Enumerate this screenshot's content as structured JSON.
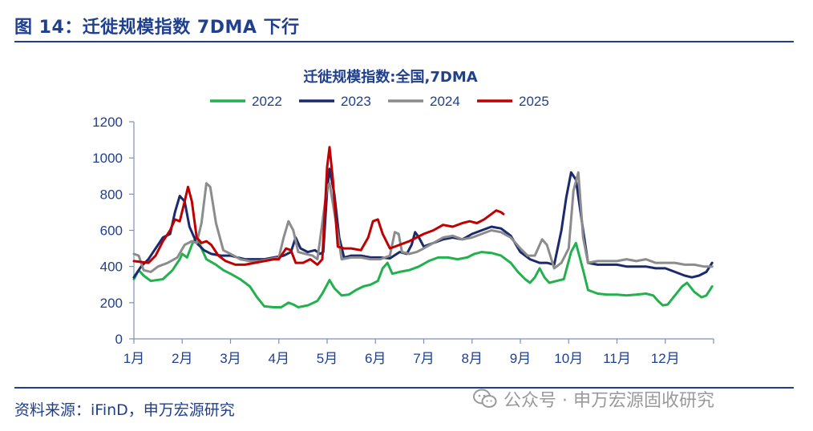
{
  "figure": {
    "title": "图 14：迁徙规模指数 7DMA 下行",
    "source": "资料来源：iFinD，申万宏源研究",
    "watermark": "公众号 · 申万宏源固收研究",
    "watermark_icon": "wechat-icon"
  },
  "colors": {
    "header": "#1f3f8f",
    "s2022": "#22b14c",
    "s2023": "#1a2a6c",
    "s2024": "#8c8c8c",
    "s2025": "#c00000"
  },
  "chart_data": {
    "type": "line",
    "title": "迁徙规模指数:全国,7DMA",
    "xlabel": "",
    "ylabel": "",
    "xlim": [
      1,
      13
    ],
    "ylim": [
      0,
      1200
    ],
    "yticks": [
      0,
      200,
      400,
      600,
      800,
      1000,
      1200
    ],
    "xticks": [
      {
        "label": "1月",
        "x": 1
      },
      {
        "label": "2月",
        "x": 2
      },
      {
        "label": "3月",
        "x": 3
      },
      {
        "label": "4月",
        "x": 4
      },
      {
        "label": "5月",
        "x": 5
      },
      {
        "label": "6月",
        "x": 6
      },
      {
        "label": "7月",
        "x": 7
      },
      {
        "label": "8月",
        "x": 8
      },
      {
        "label": "9月",
        "x": 9
      },
      {
        "label": "10月",
        "x": 10
      },
      {
        "label": "11月",
        "x": 11
      },
      {
        "label": "12月",
        "x": 12
      }
    ],
    "grid": false,
    "legend": "top-center",
    "series": [
      {
        "name": "2022",
        "color": "#22b14c",
        "points": [
          [
            1.0,
            330
          ],
          [
            1.1,
            380
          ],
          [
            1.2,
            350
          ],
          [
            1.35,
            320
          ],
          [
            1.6,
            330
          ],
          [
            1.8,
            380
          ],
          [
            1.95,
            440
          ],
          [
            2.0,
            470
          ],
          [
            2.1,
            450
          ],
          [
            2.2,
            520
          ],
          [
            2.3,
            570
          ],
          [
            2.4,
            500
          ],
          [
            2.5,
            440
          ],
          [
            2.7,
            410
          ],
          [
            2.85,
            380
          ],
          [
            3.0,
            360
          ],
          [
            3.2,
            330
          ],
          [
            3.4,
            290
          ],
          [
            3.55,
            230
          ],
          [
            3.7,
            180
          ],
          [
            3.9,
            175
          ],
          [
            4.05,
            175
          ],
          [
            4.2,
            200
          ],
          [
            4.3,
            190
          ],
          [
            4.4,
            175
          ],
          [
            4.6,
            185
          ],
          [
            4.8,
            210
          ],
          [
            4.9,
            250
          ],
          [
            5.0,
            300
          ],
          [
            5.05,
            325
          ],
          [
            5.15,
            280
          ],
          [
            5.3,
            240
          ],
          [
            5.45,
            245
          ],
          [
            5.6,
            270
          ],
          [
            5.75,
            290
          ],
          [
            5.9,
            300
          ],
          [
            6.05,
            320
          ],
          [
            6.15,
            390
          ],
          [
            6.25,
            420
          ],
          [
            6.35,
            360
          ],
          [
            6.5,
            370
          ],
          [
            6.7,
            380
          ],
          [
            6.9,
            400
          ],
          [
            7.1,
            430
          ],
          [
            7.3,
            450
          ],
          [
            7.5,
            450
          ],
          [
            7.7,
            440
          ],
          [
            7.9,
            450
          ],
          [
            8.05,
            470
          ],
          [
            8.2,
            480
          ],
          [
            8.4,
            475
          ],
          [
            8.6,
            460
          ],
          [
            8.8,
            420
          ],
          [
            8.95,
            370
          ],
          [
            9.1,
            330
          ],
          [
            9.2,
            310
          ],
          [
            9.3,
            340
          ],
          [
            9.4,
            390
          ],
          [
            9.5,
            340
          ],
          [
            9.6,
            310
          ],
          [
            9.75,
            320
          ],
          [
            9.9,
            330
          ],
          [
            10.05,
            480
          ],
          [
            10.15,
            530
          ],
          [
            10.3,
            380
          ],
          [
            10.4,
            270
          ],
          [
            10.6,
            250
          ],
          [
            10.8,
            245
          ],
          [
            11.0,
            245
          ],
          [
            11.2,
            240
          ],
          [
            11.4,
            245
          ],
          [
            11.6,
            250
          ],
          [
            11.75,
            240
          ],
          [
            11.85,
            210
          ],
          [
            11.95,
            185
          ],
          [
            12.05,
            190
          ],
          [
            12.2,
            240
          ],
          [
            12.35,
            290
          ],
          [
            12.45,
            310
          ],
          [
            12.6,
            260
          ],
          [
            12.75,
            230
          ],
          [
            12.85,
            240
          ],
          [
            12.97,
            290
          ]
        ]
      },
      {
        "name": "2023",
        "color": "#1a2a6c",
        "points": [
          [
            1.0,
            340
          ],
          [
            1.15,
            400
          ],
          [
            1.3,
            440
          ],
          [
            1.45,
            500
          ],
          [
            1.6,
            560
          ],
          [
            1.75,
            580
          ],
          [
            1.85,
            700
          ],
          [
            1.95,
            790
          ],
          [
            2.05,
            760
          ],
          [
            2.15,
            620
          ],
          [
            2.3,
            530
          ],
          [
            2.45,
            490
          ],
          [
            2.6,
            470
          ],
          [
            2.8,
            460
          ],
          [
            3.0,
            460
          ],
          [
            3.15,
            450
          ],
          [
            3.3,
            440
          ],
          [
            3.5,
            440
          ],
          [
            3.7,
            440
          ],
          [
            3.9,
            450
          ],
          [
            4.1,
            460
          ],
          [
            4.25,
            480
          ],
          [
            4.35,
            560
          ],
          [
            4.45,
            500
          ],
          [
            4.6,
            480
          ],
          [
            4.75,
            490
          ],
          [
            4.85,
            470
          ],
          [
            4.92,
            480
          ],
          [
            5.0,
            820
          ],
          [
            5.05,
            940
          ],
          [
            5.15,
            800
          ],
          [
            5.25,
            560
          ],
          [
            5.35,
            450
          ],
          [
            5.5,
            460
          ],
          [
            5.7,
            460
          ],
          [
            5.9,
            450
          ],
          [
            6.1,
            450
          ],
          [
            6.3,
            445
          ],
          [
            6.5,
            480
          ],
          [
            6.65,
            470
          ],
          [
            6.75,
            520
          ],
          [
            6.82,
            590
          ],
          [
            6.9,
            560
          ],
          [
            7.0,
            510
          ],
          [
            7.2,
            530
          ],
          [
            7.4,
            550
          ],
          [
            7.6,
            560
          ],
          [
            7.8,
            550
          ],
          [
            8.0,
            580
          ],
          [
            8.2,
            600
          ],
          [
            8.4,
            620
          ],
          [
            8.6,
            610
          ],
          [
            8.8,
            570
          ],
          [
            9.0,
            480
          ],
          [
            9.2,
            440
          ],
          [
            9.4,
            420
          ],
          [
            9.55,
            420
          ],
          [
            9.7,
            410
          ],
          [
            9.85,
            600
          ],
          [
            9.95,
            780
          ],
          [
            10.05,
            920
          ],
          [
            10.15,
            880
          ],
          [
            10.3,
            600
          ],
          [
            10.4,
            420
          ],
          [
            10.6,
            410
          ],
          [
            10.8,
            410
          ],
          [
            11.0,
            410
          ],
          [
            11.2,
            400
          ],
          [
            11.4,
            400
          ],
          [
            11.6,
            400
          ],
          [
            11.8,
            390
          ],
          [
            12.0,
            390
          ],
          [
            12.2,
            370
          ],
          [
            12.4,
            350
          ],
          [
            12.55,
            340
          ],
          [
            12.7,
            350
          ],
          [
            12.85,
            370
          ],
          [
            12.97,
            420
          ]
        ]
      },
      {
        "name": "2024",
        "color": "#8c8c8c",
        "points": [
          [
            1.0,
            470
          ],
          [
            1.1,
            460
          ],
          [
            1.2,
            380
          ],
          [
            1.35,
            370
          ],
          [
            1.5,
            400
          ],
          [
            1.7,
            420
          ],
          [
            1.9,
            450
          ],
          [
            2.05,
            520
          ],
          [
            2.2,
            540
          ],
          [
            2.3,
            530
          ],
          [
            2.4,
            640
          ],
          [
            2.5,
            860
          ],
          [
            2.58,
            840
          ],
          [
            2.7,
            640
          ],
          [
            2.85,
            490
          ],
          [
            3.0,
            470
          ],
          [
            3.2,
            440
          ],
          [
            3.4,
            430
          ],
          [
            3.6,
            430
          ],
          [
            3.8,
            440
          ],
          [
            4.0,
            450
          ],
          [
            4.1,
            560
          ],
          [
            4.2,
            650
          ],
          [
            4.3,
            600
          ],
          [
            4.4,
            480
          ],
          [
            4.55,
            470
          ],
          [
            4.7,
            460
          ],
          [
            4.8,
            440
          ],
          [
            4.9,
            640
          ],
          [
            5.0,
            840
          ],
          [
            5.05,
            860
          ],
          [
            5.15,
            700
          ],
          [
            5.3,
            440
          ],
          [
            5.5,
            450
          ],
          [
            5.7,
            450
          ],
          [
            5.9,
            440
          ],
          [
            6.1,
            440
          ],
          [
            6.3,
            460
          ],
          [
            6.4,
            590
          ],
          [
            6.48,
            580
          ],
          [
            6.55,
            480
          ],
          [
            6.7,
            470
          ],
          [
            6.85,
            480
          ],
          [
            7.0,
            500
          ],
          [
            7.2,
            530
          ],
          [
            7.4,
            560
          ],
          [
            7.6,
            570
          ],
          [
            7.8,
            550
          ],
          [
            8.0,
            560
          ],
          [
            8.2,
            580
          ],
          [
            8.4,
            600
          ],
          [
            8.6,
            590
          ],
          [
            8.8,
            560
          ],
          [
            9.0,
            500
          ],
          [
            9.15,
            460
          ],
          [
            9.3,
            460
          ],
          [
            9.45,
            550
          ],
          [
            9.55,
            520
          ],
          [
            9.7,
            390
          ],
          [
            9.85,
            420
          ],
          [
            10.0,
            500
          ],
          [
            10.1,
            820
          ],
          [
            10.2,
            920
          ],
          [
            10.3,
            560
          ],
          [
            10.4,
            420
          ],
          [
            10.6,
            430
          ],
          [
            10.8,
            430
          ],
          [
            11.0,
            430
          ],
          [
            11.2,
            440
          ],
          [
            11.4,
            430
          ],
          [
            11.6,
            440
          ],
          [
            11.8,
            420
          ],
          [
            12.0,
            420
          ],
          [
            12.2,
            420
          ],
          [
            12.4,
            410
          ],
          [
            12.6,
            410
          ],
          [
            12.8,
            400
          ],
          [
            12.97,
            400
          ]
        ]
      },
      {
        "name": "2025",
        "color": "#c00000",
        "points": [
          [
            1.0,
            430
          ],
          [
            1.15,
            425
          ],
          [
            1.3,
            420
          ],
          [
            1.45,
            460
          ],
          [
            1.6,
            540
          ],
          [
            1.75,
            600
          ],
          [
            1.85,
            660
          ],
          [
            1.95,
            650
          ],
          [
            2.05,
            760
          ],
          [
            2.12,
            840
          ],
          [
            2.2,
            760
          ],
          [
            2.3,
            560
          ],
          [
            2.4,
            530
          ],
          [
            2.5,
            540
          ],
          [
            2.6,
            520
          ],
          [
            2.75,
            460
          ],
          [
            2.9,
            430
          ],
          [
            3.1,
            410
          ],
          [
            3.3,
            410
          ],
          [
            3.5,
            420
          ],
          [
            3.7,
            430
          ],
          [
            3.9,
            440
          ],
          [
            4.0,
            440
          ],
          [
            4.15,
            500
          ],
          [
            4.25,
            490
          ],
          [
            4.35,
            420
          ],
          [
            4.5,
            420
          ],
          [
            4.65,
            440
          ],
          [
            4.8,
            410
          ],
          [
            4.9,
            440
          ],
          [
            5.0,
            950
          ],
          [
            5.05,
            1060
          ],
          [
            5.12,
            880
          ],
          [
            5.22,
            510
          ],
          [
            5.35,
            500
          ],
          [
            5.5,
            500
          ],
          [
            5.7,
            490
          ],
          [
            5.85,
            560
          ],
          [
            5.95,
            650
          ],
          [
            6.05,
            660
          ],
          [
            6.15,
            580
          ],
          [
            6.3,
            500
          ],
          [
            6.5,
            520
          ],
          [
            6.7,
            540
          ],
          [
            6.85,
            560
          ],
          [
            7.0,
            580
          ],
          [
            7.2,
            600
          ],
          [
            7.4,
            630
          ],
          [
            7.6,
            620
          ],
          [
            7.8,
            640
          ],
          [
            7.95,
            650
          ],
          [
            8.1,
            640
          ],
          [
            8.25,
            660
          ],
          [
            8.4,
            690
          ],
          [
            8.5,
            710
          ],
          [
            8.6,
            700
          ],
          [
            8.65,
            690
          ]
        ]
      }
    ]
  }
}
